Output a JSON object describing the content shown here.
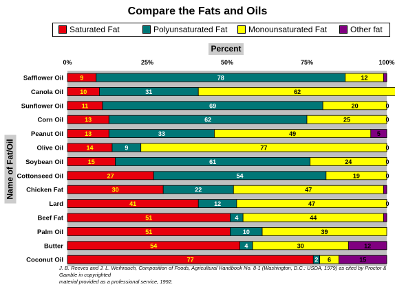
{
  "chart_data": {
    "type": "bar",
    "orientation": "horizontal",
    "stacked": "percent",
    "title": "Compare the Fats and Oils",
    "xlabel": "Percent",
    "ylabel": "Name of Fat/Oil",
    "xlim": [
      0,
      100
    ],
    "x_ticks": [
      "0%",
      "25%",
      "50%",
      "75%",
      "100%"
    ],
    "legend_position": "top",
    "grid": false,
    "categories": [
      "Safflower Oil",
      "Canola Oil",
      "Sunflower Oil",
      "Corn Oil",
      "Peanut Oil",
      "Olive Oil",
      "Soybean Oil",
      "Cottonseed Oil",
      "Chicken Fat",
      "Lard",
      "Beef Fat",
      "Palm Oil",
      "Butter",
      "Coconut Oil"
    ],
    "series": [
      {
        "name": "Saturated Fat",
        "color": "#e8000d",
        "label_color": "#ffff00",
        "values": [
          9,
          10,
          11,
          13,
          13,
          14,
          15,
          27,
          30,
          41,
          51,
          51,
          54,
          77
        ]
      },
      {
        "name": "Polyunsaturated Fat",
        "color": "#007777",
        "label_color": "#ffffff",
        "values": [
          78,
          31,
          69,
          62,
          33,
          9,
          61,
          54,
          22,
          12,
          4,
          10,
          4,
          2
        ]
      },
      {
        "name": "Monounsaturated Fat",
        "color": "#ffff00",
        "label_color": "#000000",
        "values": [
          12,
          62,
          20,
          25,
          49,
          77,
          24,
          19,
          47,
          47,
          44,
          39,
          30,
          6
        ]
      },
      {
        "name": "Other fat",
        "color": "#800080",
        "label_color": "#000000",
        "values": [
          1,
          1,
          0,
          0,
          5,
          0,
          0,
          0,
          1,
          0,
          1,
          0,
          12,
          15
        ]
      }
    ],
    "data_labels": [
      [
        "9",
        "78",
        "12",
        ""
      ],
      [
        "10",
        "31",
        "62",
        ""
      ],
      [
        "11",
        "69",
        "20",
        "0"
      ],
      [
        "13",
        "62",
        "25",
        "0"
      ],
      [
        "13",
        "33",
        "49",
        "5"
      ],
      [
        "14",
        "9",
        "77",
        "0"
      ],
      [
        "15",
        "61",
        "24",
        "0"
      ],
      [
        "27",
        "54",
        "19",
        "0"
      ],
      [
        "30",
        "22",
        "47",
        ""
      ],
      [
        "41",
        "12",
        "47",
        "0"
      ],
      [
        "51",
        "4",
        "44",
        ""
      ],
      [
        "51",
        "10",
        "39",
        ""
      ],
      [
        "54",
        "4",
        "30",
        "12"
      ],
      [
        "77",
        "2",
        "6",
        "15"
      ]
    ]
  },
  "source": {
    "authors": "J. B. Reeves and J. L. Weihrauch, ",
    "work": "Composition of Foods, Agricultural Handbook No. 8-1 (Washington, D.C.: USDA, 1979)",
    "line1_rest": " as cited by Proctor & Gamble  in copyrighted",
    "line2": "material provided as a professional service, 1992."
  }
}
